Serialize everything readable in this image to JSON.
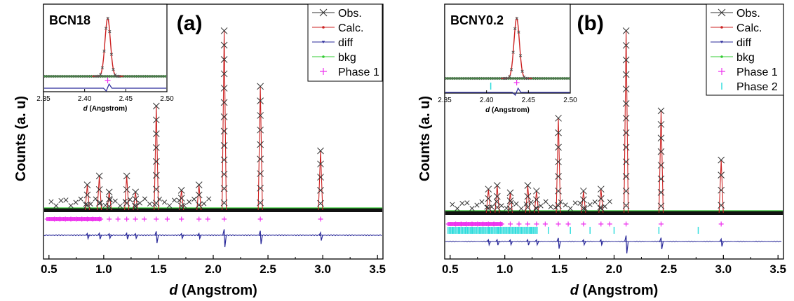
{
  "chart_data": [
    {
      "type": "line",
      "panel_label": "(a)",
      "sample_label": "BCN18",
      "xlabel_italic": "d",
      "xlabel_rest": " (Angstrom)",
      "ylabel": "Counts (a. u)",
      "xlim": [
        0.45,
        3.55
      ],
      "xticks": [
        0.5,
        1.0,
        1.5,
        2.0,
        2.5,
        3.0,
        3.5
      ],
      "xtick_labels": [
        "0.5",
        "1.0",
        "1.5",
        "2.0",
        "2.5",
        "3.0",
        "3.5"
      ],
      "legend_position": "top-right",
      "legend": [
        "Obs.",
        "Calc.",
        "diff",
        "bkg",
        "Phase 1"
      ],
      "series": [
        {
          "name": "Obs.",
          "color": "#333333",
          "marker": "x"
        },
        {
          "name": "Calc.",
          "color": "#cc2222",
          "marker": "dot"
        },
        {
          "name": "diff",
          "color": "#2a2a9a",
          "marker": "triangle"
        },
        {
          "name": "bkg",
          "color": "#33cc33",
          "marker": "dot"
        },
        {
          "name": "Phase 1",
          "color": "#ee33ee",
          "marker": "plus"
        }
      ],
      "peaks": [
        {
          "d": 0.85,
          "rel": 0.14
        },
        {
          "d": 0.96,
          "rel": 0.19
        },
        {
          "d": 1.05,
          "rel": 0.1
        },
        {
          "d": 1.21,
          "rel": 0.19
        },
        {
          "d": 1.29,
          "rel": 0.1
        },
        {
          "d": 1.48,
          "rel": 0.58
        },
        {
          "d": 1.71,
          "rel": 0.11
        },
        {
          "d": 1.87,
          "rel": 0.14
        },
        {
          "d": 2.1,
          "rel": 1.0
        },
        {
          "d": 2.43,
          "rel": 0.69
        },
        {
          "d": 2.98,
          "rel": 0.33
        }
      ],
      "phase1_ticks": [
        0.55,
        0.6,
        0.65,
        0.7,
        0.75,
        0.8,
        0.85,
        0.9,
        0.96,
        1.05,
        1.13,
        1.21,
        1.29,
        1.37,
        1.48,
        1.58,
        1.71,
        1.87,
        1.95,
        2.1,
        2.43,
        2.98
      ],
      "inset": {
        "xlim": [
          2.35,
          2.5
        ],
        "xticks": [
          "2.35",
          "2.40",
          "2.45",
          "2.50"
        ],
        "xlabel_italic": "d",
        "xlabel_rest": " (Angstrom)",
        "peak_center": 2.428
      }
    },
    {
      "type": "line",
      "panel_label": "(b)",
      "sample_label": "BCNY0.2",
      "xlabel_italic": "d",
      "xlabel_rest": " (Angstrom)",
      "ylabel": "Counts (a. u)",
      "xlim": [
        0.45,
        3.55
      ],
      "xticks": [
        0.5,
        1.0,
        1.5,
        2.0,
        2.5,
        3.0,
        3.5
      ],
      "xtick_labels": [
        "0.5",
        "1.0",
        "1.5",
        "2.0",
        "2.5",
        "3.0",
        "3.5"
      ],
      "legend_position": "top-right",
      "legend": [
        "Obs.",
        "Calc.",
        "diff",
        "bkg",
        "Phase 1",
        "Phase 2"
      ],
      "series": [
        {
          "name": "Obs.",
          "color": "#333333",
          "marker": "x"
        },
        {
          "name": "Calc.",
          "color": "#cc2222",
          "marker": "dot"
        },
        {
          "name": "diff",
          "color": "#2a2a9a",
          "marker": "triangle"
        },
        {
          "name": "bkg",
          "color": "#33cc33",
          "marker": "dot"
        },
        {
          "name": "Phase 1",
          "color": "#ee33ee",
          "marker": "plus"
        },
        {
          "name": "Phase 2",
          "color": "#33dddd",
          "marker": "bar"
        }
      ],
      "peaks": [
        {
          "d": 0.85,
          "rel": 0.13
        },
        {
          "d": 0.93,
          "rel": 0.15
        },
        {
          "d": 1.05,
          "rel": 0.11
        },
        {
          "d": 1.21,
          "rel": 0.15
        },
        {
          "d": 1.29,
          "rel": 0.12
        },
        {
          "d": 1.49,
          "rel": 0.52
        },
        {
          "d": 1.72,
          "rel": 0.12
        },
        {
          "d": 1.88,
          "rel": 0.13
        },
        {
          "d": 2.11,
          "rel": 1.0
        },
        {
          "d": 2.43,
          "rel": 0.56
        },
        {
          "d": 2.98,
          "rel": 0.29
        }
      ],
      "phase1_ticks": [
        0.55,
        0.6,
        0.65,
        0.7,
        0.75,
        0.8,
        0.85,
        0.9,
        0.96,
        1.05,
        1.13,
        1.21,
        1.29,
        1.37,
        1.49,
        1.58,
        1.72,
        1.88,
        1.96,
        2.11,
        2.43,
        2.98
      ],
      "phase2_ticks": [
        0.52,
        0.58,
        0.64,
        0.7,
        0.78,
        0.86,
        0.94,
        1.02,
        1.1,
        1.24,
        1.4,
        1.6,
        1.78,
        2.0,
        2.41,
        2.77
      ],
      "inset": {
        "xlim": [
          2.35,
          2.5
        ],
        "xticks": [
          "2.35",
          "2.40",
          "2.45",
          "2.50"
        ],
        "xlabel_italic": "d",
        "xlabel_rest": " (Angstrom)",
        "peak_center": 2.436,
        "phase2_tick": 2.405
      }
    }
  ]
}
